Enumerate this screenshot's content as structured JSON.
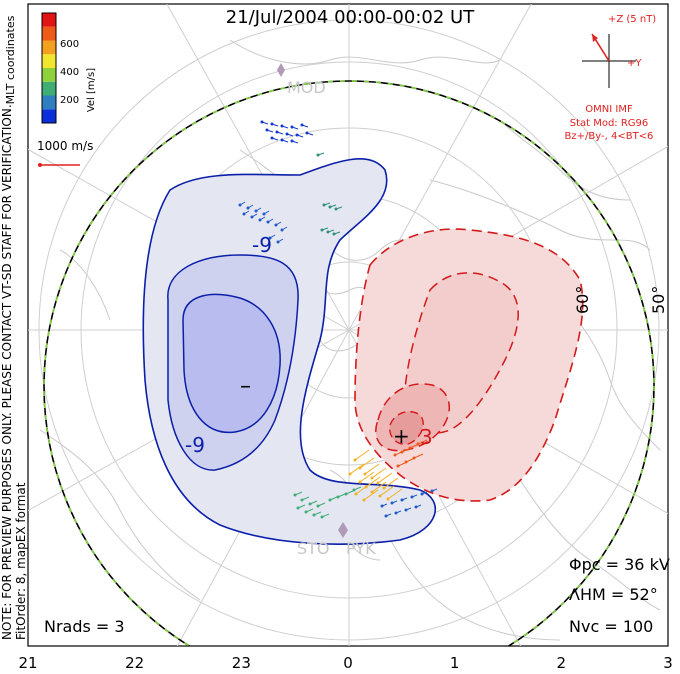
{
  "header": {
    "title": "21/Jul/2004 00:00-00:02 UT",
    "side_note": "NOTE: FOR PREVIEW PURPOSES ONLY. PLEASE CONTACT VT-SD STAFF FOR VERIFICATION.",
    "fit_note": "FitOrder: 8, mapEX format",
    "coord_label": "MLT coordinates"
  },
  "colorbar": {
    "label": "Vel [m/s]",
    "ticks": [
      "200",
      "400",
      "600"
    ],
    "colors": [
      "#0b2fd9",
      "#2f7fc0",
      "#3fae74",
      "#8fd13a",
      "#f0e630",
      "#f3a020",
      "#ee5a18",
      "#e21515"
    ]
  },
  "reference_vector": {
    "label": "1000 m/s",
    "color": "#e02020"
  },
  "imf": {
    "scale_label": "+Z (5 nT)",
    "y_label": "+Y",
    "source": "OMNI IMF",
    "model": "Stat Mod: RG96",
    "condition": "Bz+/By-, 4<BT<6",
    "color": "#e02020"
  },
  "stations": [
    "MOD",
    "STO",
    "PYK"
  ],
  "latitude_labels": [
    "60°",
    "50°"
  ],
  "contour_labels": [
    "-9",
    "-9",
    "3"
  ],
  "extrema": {
    "max_symbol": "+",
    "min_symbol": "–"
  },
  "stats": {
    "phi_pc": "Φpc = 36 kV",
    "lambda_hm": "ΛHM = 52°",
    "n_vc": "Nvc = 100",
    "n_rads": "Nrads = 3"
  },
  "chart_data": {
    "type": "heatmap",
    "title": "21/Jul/2004 00:00-00:02 UT",
    "x_axis": {
      "label": "",
      "ticks": [
        "21",
        "22",
        "23",
        "0",
        "1",
        "2",
        "3"
      ]
    },
    "colorbar": {
      "label": "Vel [m/s]",
      "ticks": [
        200,
        400,
        600
      ]
    },
    "potential_contours_kV": [
      -9,
      3
    ],
    "cross_polar_cap_potential_kV": 36,
    "heppner_maynard_boundary_deg": 52,
    "n_vectors": 100,
    "n_radars": 3,
    "latitude_circles_deg": [
      60,
      50
    ]
  }
}
